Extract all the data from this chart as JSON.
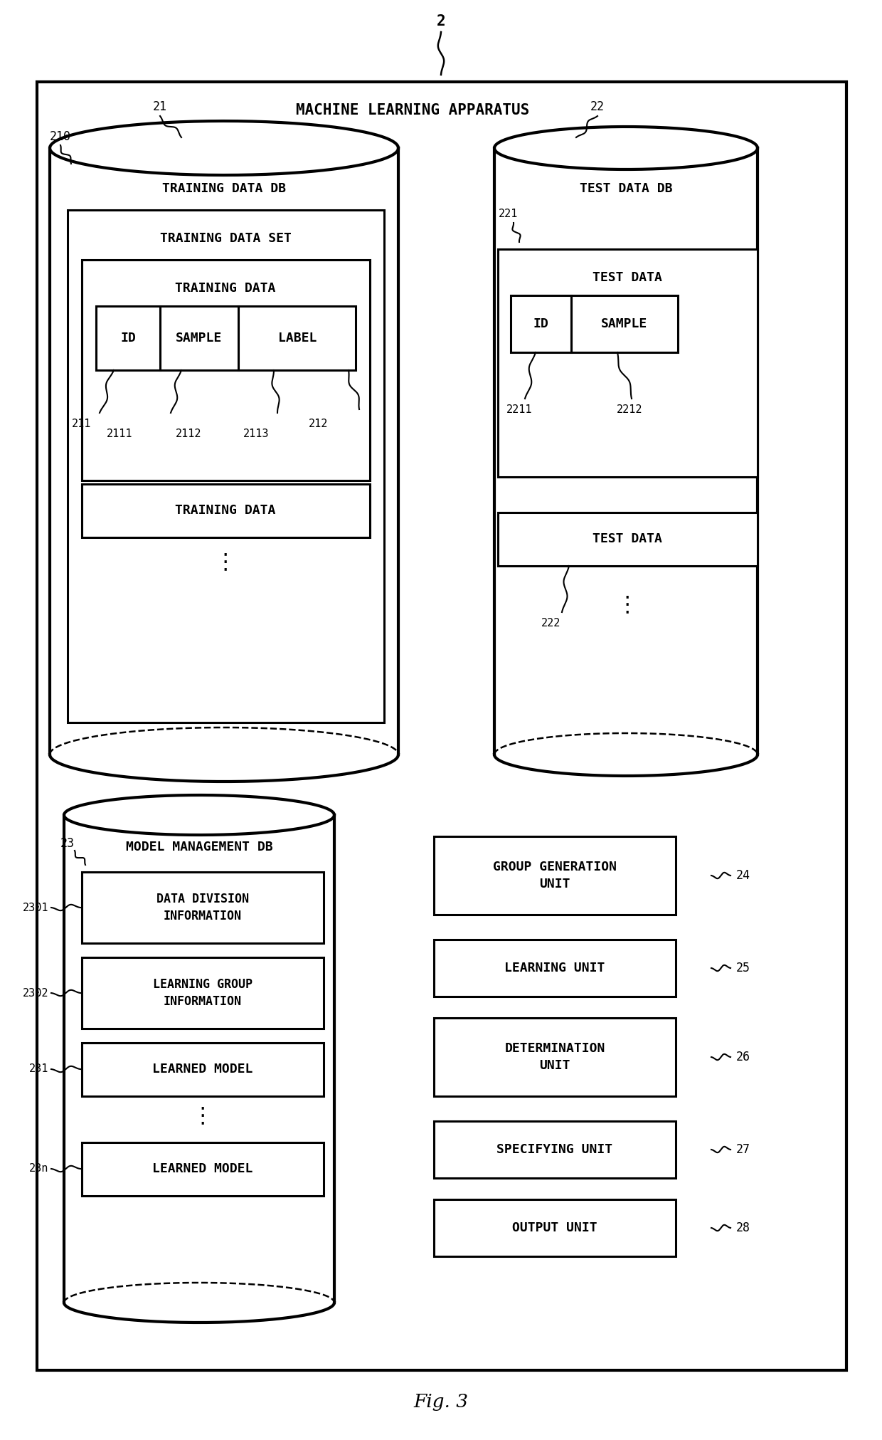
{
  "title": "Fig. 3",
  "bg_color": "#ffffff",
  "line_color": "#000000",
  "fig_label": "2",
  "machine_learning_label": "MACHINE LEARNING APPARATUS",
  "label_21": "21",
  "label_22": "22",
  "label_210": "210",
  "training_db_label": "TRAINING DATA DB",
  "test_db_label": "TEST DATA DB",
  "training_dataset_label": "TRAINING DATA SET",
  "training_data_label": "TRAINING DATA",
  "id_label": "ID",
  "sample_label": "SAMPLE",
  "label_label": "LABEL",
  "label_211": "211",
  "label_2111": "2111",
  "label_2112": "2112",
  "label_2113": "2113",
  "label_212": "212",
  "test_data_label": "TEST DATA",
  "label_221": "221",
  "label_2211": "2211",
  "label_2212": "2212",
  "label_222": "222",
  "model_db_label": "MODEL MANAGEMENT DB",
  "label_23": "23",
  "data_division_label": "DATA DIVISION\nINFORMATION",
  "label_2301": "2301",
  "learning_group_label": "LEARNING GROUP\nINFORMATION",
  "label_2302": "2302",
  "learned_model_label": "LEARNED MODEL",
  "label_231": "231",
  "label_23n": "23n",
  "group_gen_label": "GROUP GENERATION\nUNIT",
  "label_24": "24",
  "learning_unit_label": "LEARNING UNIT",
  "label_25": "25",
  "determination_label": "DETERMINATION\nUNIT",
  "label_26": "26",
  "specifying_label": "SPECIFYING UNIT",
  "label_27": "27",
  "output_label": "OUTPUT UNIT",
  "label_28": "28"
}
